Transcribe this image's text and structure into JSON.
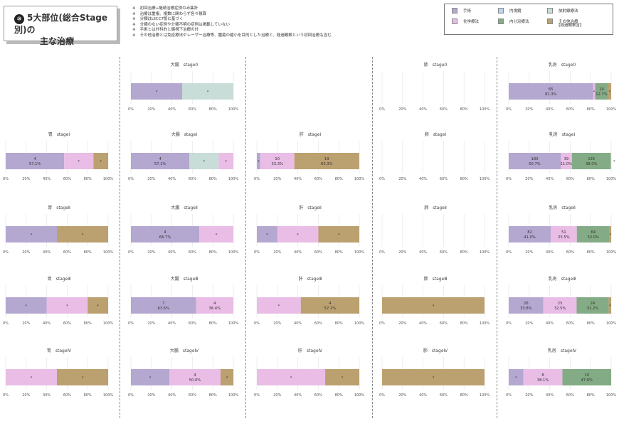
{
  "page": {
    "title_number": "⑩",
    "title_line1": "5大部位(総合Stage別)の",
    "title_line2": "主な治療",
    "notes": [
      {
        "mark": "※",
        "text": "初回治療+継続治療症例のみ集計"
      },
      {
        "mark": "※",
        "text": "治療は重複、複数に関わらず各々積算"
      },
      {
        "mark": "※",
        "text": "分類はUICC7版に基づく"
      },
      {
        "mark": "※",
        "text": "分類のない症例や分類不明の症例は掲載していない"
      },
      {
        "mark": "※",
        "text": "手術とは外科的と鏡視下治療の計"
      },
      {
        "mark": "※",
        "text": "その他治療とは免疫療法やレーザー治療等、腫瘍の縮小を目的とした治療と、経過観察という初回治療も含む"
      }
    ]
  },
  "legend": {
    "items": [
      {
        "label": "手術",
        "color": "#b4a7d0"
      },
      {
        "label": "内視鏡",
        "color": "#b9d6ef"
      },
      {
        "label": "放射線療法",
        "color": "#c8dcd8"
      },
      {
        "label": "化学療法",
        "color": "#e9bde6"
      },
      {
        "label": "内分泌療法",
        "color": "#83ab85"
      },
      {
        "label": "その他治療",
        "color": "#bba070"
      }
    ],
    "note": "【経過観察含】"
  },
  "chart_data": [
    {
      "type": "bar",
      "title": "大腸　stage0",
      "segments": [
        {
          "series": "手術",
          "value": 50,
          "label": "*"
        },
        {
          "series": "放射線療法",
          "value": 50,
          "label": "*"
        }
      ],
      "ticks": [
        "0%",
        "20%",
        "40%",
        "60%",
        "80%",
        "100%"
      ]
    },
    {
      "type": "bar",
      "title": "肺　stage0",
      "segments": [],
      "ticks": [
        "0%",
        "20%",
        "40%",
        "60%",
        "80%",
        "100%"
      ]
    },
    {
      "type": "bar",
      "title": "乳房　stage0",
      "segments": [
        {
          "series": "手術",
          "value": 82.3,
          "label": "65",
          "pct": "82.3%"
        },
        {
          "series": "化学療法",
          "value": 2,
          "label": "*"
        },
        {
          "series": "内分泌療法",
          "value": 12.7,
          "label": "10",
          "pct": "12.7%"
        },
        {
          "series": "その他治療",
          "value": 3,
          "label": "*"
        }
      ],
      "ticks": [
        "0%",
        "20%",
        "40%",
        "60%",
        "80%",
        "100%"
      ]
    },
    {
      "type": "bar",
      "title": "胃　stageⅠ",
      "segments": [
        {
          "series": "手術",
          "value": 57.1,
          "label": "4",
          "pct": "57.1%"
        },
        {
          "series": "化学療法",
          "value": 28.6,
          "label": "*"
        },
        {
          "series": "その他治療",
          "value": 14.3,
          "label": "*"
        }
      ],
      "ticks": [
        "0%",
        "20%",
        "40%",
        "60%",
        "80%",
        "100%"
      ]
    },
    {
      "type": "bar",
      "title": "大腸　stageⅠ",
      "segments": [
        {
          "series": "手術",
          "value": 57.1,
          "label": "4",
          "pct": "57.1%"
        },
        {
          "series": "放射線療法",
          "value": 28.6,
          "label": "*"
        },
        {
          "series": "化学療法",
          "value": 14.3,
          "label": "*"
        }
      ],
      "ticks": [
        "0%",
        "20%",
        "40%",
        "60%",
        "80%",
        "100%"
      ]
    },
    {
      "type": "bar",
      "title": "肝　stageⅠ",
      "segments": [
        {
          "series": "手術",
          "value": 3.3,
          "label": "*"
        },
        {
          "series": "化学療法",
          "value": 33.3,
          "label": "10",
          "pct": "33.3%"
        },
        {
          "series": "その他治療",
          "value": 63.3,
          "label": "19",
          "pct": "63.3%"
        }
      ],
      "ticks": [
        "0%",
        "20%",
        "40%",
        "60%",
        "80%",
        "100%"
      ]
    },
    {
      "type": "bar",
      "title": "肺　stageⅠ",
      "segments": [],
      "ticks": [
        "0%",
        "20%",
        "40%",
        "60%",
        "80%",
        "100%"
      ]
    },
    {
      "type": "bar",
      "title": "乳房　stageⅠ",
      "segments": [
        {
          "series": "手術",
          "value": 50.7,
          "label": "180",
          "pct": "50.7%"
        },
        {
          "series": "化学療法",
          "value": 11.0,
          "label": "39",
          "pct": "11.0%"
        },
        {
          "series": "内分泌療法",
          "value": 38.0,
          "label": "135",
          "pct": "38.0%"
        }
      ],
      "end_mark": "*",
      "ticks": [
        "0%",
        "20%",
        "40%",
        "60%",
        "80%",
        "100%"
      ]
    },
    {
      "type": "bar",
      "title": "胃　stageⅡ",
      "segments": [
        {
          "series": "手術",
          "value": 50,
          "label": "*"
        },
        {
          "series": "その他治療",
          "value": 50,
          "label": "*"
        }
      ],
      "ticks": [
        "0%",
        "20%",
        "40%",
        "60%",
        "80%",
        "100%"
      ]
    },
    {
      "type": "bar",
      "title": "大腸　stageⅡ",
      "segments": [
        {
          "series": "手術",
          "value": 66.7,
          "label": "4",
          "pct": "66.7%"
        },
        {
          "series": "化学療法",
          "value": 33.3,
          "label": "*"
        }
      ],
      "ticks": [
        "0%",
        "20%",
        "40%",
        "60%",
        "80%",
        "100%"
      ]
    },
    {
      "type": "bar",
      "title": "肝　stageⅡ",
      "segments": [
        {
          "series": "手術",
          "value": 20,
          "label": "*"
        },
        {
          "series": "化学療法",
          "value": 40,
          "label": "*"
        },
        {
          "series": "その他治療",
          "value": 40,
          "label": "*"
        }
      ],
      "ticks": [
        "0%",
        "20%",
        "40%",
        "60%",
        "80%",
        "100%"
      ]
    },
    {
      "type": "bar",
      "title": "肺　stageⅡ",
      "segments": [],
      "ticks": [
        "0%",
        "20%",
        "40%",
        "60%",
        "80%",
        "100%"
      ]
    },
    {
      "type": "bar",
      "title": "乳房　stageⅡ",
      "segments": [
        {
          "series": "手術",
          "value": 41.0,
          "label": "82",
          "pct": "41.0%"
        },
        {
          "series": "化学療法",
          "value": 25.5,
          "label": "51",
          "pct": "25.5%"
        },
        {
          "series": "内分泌療法",
          "value": 32.0,
          "label": "64",
          "pct": "32.0%"
        },
        {
          "series": "その他治療",
          "value": 1.5,
          "label": "*"
        }
      ],
      "ticks": [
        "0%",
        "20%",
        "40%",
        "60%",
        "80%",
        "100%"
      ]
    },
    {
      "type": "bar",
      "title": "胃　stageⅢ",
      "segments": [
        {
          "series": "手術",
          "value": 40,
          "label": "*"
        },
        {
          "series": "化学療法",
          "value": 40,
          "label": "*"
        },
        {
          "series": "その他治療",
          "value": 20,
          "label": "*"
        }
      ],
      "ticks": [
        "0%",
        "20%",
        "40%",
        "60%",
        "80%",
        "100%"
      ]
    },
    {
      "type": "bar",
      "title": "大腸　stageⅢ",
      "segments": [
        {
          "series": "手術",
          "value": 63.6,
          "label": "7",
          "pct": "63.6%"
        },
        {
          "series": "化学療法",
          "value": 36.4,
          "label": "4",
          "pct": "36.4%"
        }
      ],
      "ticks": [
        "0%",
        "20%",
        "40%",
        "60%",
        "80%",
        "100%"
      ]
    },
    {
      "type": "bar",
      "title": "肝　stageⅢ",
      "segments": [
        {
          "series": "化学療法",
          "value": 42.9,
          "label": "*"
        },
        {
          "series": "その他治療",
          "value": 57.1,
          "label": "4",
          "pct": "57.1%"
        }
      ],
      "ticks": [
        "0%",
        "20%",
        "40%",
        "60%",
        "80%",
        "100%"
      ]
    },
    {
      "type": "bar",
      "title": "肺　stageⅢ",
      "segments": [
        {
          "series": "その他治療",
          "value": 100,
          "label": "*"
        }
      ],
      "ticks": [
        "0%",
        "20%",
        "40%",
        "60%",
        "80%",
        "100%"
      ]
    },
    {
      "type": "bar",
      "title": "乳房　stageⅢ",
      "segments": [
        {
          "series": "手術",
          "value": 33.8,
          "label": "26",
          "pct": "33.8%"
        },
        {
          "series": "化学療法",
          "value": 32.5,
          "label": "25",
          "pct": "32.5%"
        },
        {
          "series": "内分泌療法",
          "value": 31.2,
          "label": "24",
          "pct": "31.2%"
        },
        {
          "series": "その他治療",
          "value": 2.5,
          "label": "*"
        }
      ],
      "ticks": [
        "0%",
        "20%",
        "40%",
        "60%",
        "80%",
        "100%"
      ]
    },
    {
      "type": "bar",
      "title": "胃　stageⅣ",
      "segments": [
        {
          "series": "化学療法",
          "value": 50,
          "label": "*"
        },
        {
          "series": "その他治療",
          "value": 50,
          "label": "*"
        }
      ],
      "ticks": [
        "0%",
        "20%",
        "40%",
        "60%",
        "80%",
        "100%"
      ]
    },
    {
      "type": "bar",
      "title": "大腸　stageⅣ",
      "segments": [
        {
          "series": "手術",
          "value": 37.5,
          "label": "*"
        },
        {
          "series": "化学療法",
          "value": 50.0,
          "label": "4",
          "pct": "50.0%"
        },
        {
          "series": "その他治療",
          "value": 12.5,
          "label": "*"
        }
      ],
      "ticks": [
        "0%",
        "20%",
        "40%",
        "60%",
        "80%",
        "100%"
      ]
    },
    {
      "type": "bar",
      "title": "肝　stageⅣ",
      "segments": [
        {
          "series": "化学療法",
          "value": 66.7,
          "label": "*"
        },
        {
          "series": "その他治療",
          "value": 33.3,
          "label": "*"
        }
      ],
      "ticks": [
        "0%",
        "20%",
        "40%",
        "60%",
        "80%",
        "100%"
      ]
    },
    {
      "type": "bar",
      "title": "肺　stageⅣ",
      "segments": [
        {
          "series": "その他治療",
          "value": 100,
          "label": "*"
        }
      ],
      "ticks": [
        "0%",
        "20%",
        "40%",
        "60%",
        "80%",
        "100%"
      ]
    },
    {
      "type": "bar",
      "title": "乳房　stageⅣ",
      "segments": [
        {
          "series": "手術",
          "value": 14.3,
          "label": "*"
        },
        {
          "series": "化学療法",
          "value": 38.1,
          "label": "8",
          "pct": "38.1%"
        },
        {
          "series": "内分泌療法",
          "value": 47.6,
          "label": "10",
          "pct": "47.6%"
        }
      ],
      "ticks": [
        "0%",
        "20%",
        "40%",
        "60%",
        "80%",
        "100%"
      ]
    }
  ]
}
